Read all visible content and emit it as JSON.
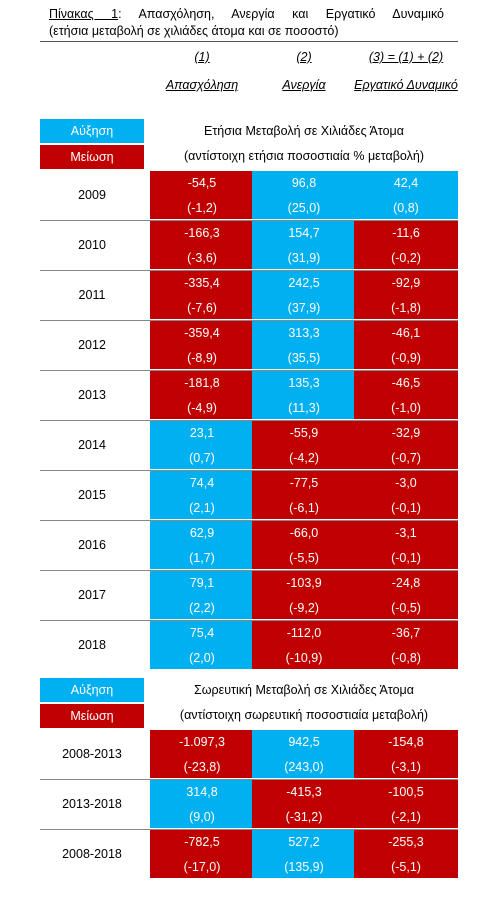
{
  "title": {
    "prefix": "Πίνακας 1",
    "line1_rest": ": Απασχόληση, Ανεργία και Εργατικό Δυναμικό",
    "line2": "(ετήσια μεταβολή σε χιλιάδες άτομα και σε ποσοστό)"
  },
  "columns": [
    {
      "num": "(1)",
      "name": "Απασχόληση"
    },
    {
      "num": "(2)",
      "name": "Ανεργία"
    },
    {
      "num": "(3) = (1) + (2)",
      "name": "Εργατικό Δυναμικό"
    }
  ],
  "legend": {
    "increase": "Αύξηση",
    "decrease": "Μείωση"
  },
  "colors": {
    "increase": "#00b0f0",
    "decrease": "#c00000"
  },
  "section1": {
    "line1": "Ετήσια Μεταβολή σε Χιλιάδες Άτομα",
    "line2": "(αντίστοιχη ετήσια ποσοστιαία % μεταβολή)"
  },
  "section2": {
    "line1": "Σωρευτική Μεταβολή σε Χιλιάδες Άτομα",
    "line2": "(αντίστοιχη σωρευτική ποσοστιαία μεταβολή)"
  },
  "annual_rows": [
    {
      "label": "2009",
      "cells": [
        [
          "-54,5",
          "(-1,2)",
          "decrease"
        ],
        [
          "96,8",
          "(25,0)",
          "increase"
        ],
        [
          "42,4",
          "(0,8)",
          "increase"
        ]
      ]
    },
    {
      "label": "2010",
      "cells": [
        [
          "-166,3",
          "(-3,6)",
          "decrease"
        ],
        [
          "154,7",
          "(31,9)",
          "increase"
        ],
        [
          "-11,6",
          "(-0,2)",
          "decrease"
        ]
      ]
    },
    {
      "label": "2011",
      "cells": [
        [
          "-335,4",
          "(-7,6)",
          "decrease"
        ],
        [
          "242,5",
          "(37,9)",
          "increase"
        ],
        [
          "-92,9",
          "(-1,8)",
          "decrease"
        ]
      ]
    },
    {
      "label": "2012",
      "cells": [
        [
          "-359,4",
          "(-8,9)",
          "decrease"
        ],
        [
          "313,3",
          "(35,5)",
          "increase"
        ],
        [
          "-46,1",
          "(-0,9)",
          "decrease"
        ]
      ]
    },
    {
      "label": "2013",
      "cells": [
        [
          "-181,8",
          "(-4,9)",
          "decrease"
        ],
        [
          "135,3",
          "(11,3)",
          "increase"
        ],
        [
          "-46,5",
          "(-1,0)",
          "decrease"
        ]
      ]
    },
    {
      "label": "2014",
      "cells": [
        [
          "23,1",
          "(0,7)",
          "increase"
        ],
        [
          "-55,9",
          "(-4,2)",
          "decrease"
        ],
        [
          "-32,9",
          "(-0,7)",
          "decrease"
        ]
      ]
    },
    {
      "label": "2015",
      "cells": [
        [
          "74,4",
          "(2,1)",
          "increase"
        ],
        [
          "-77,5",
          "(-6,1)",
          "decrease"
        ],
        [
          "-3,0",
          "(-0,1)",
          "decrease"
        ]
      ]
    },
    {
      "label": "2016",
      "cells": [
        [
          "62,9",
          "(1,7)",
          "increase"
        ],
        [
          "-66,0",
          "(-5,5)",
          "decrease"
        ],
        [
          "-3,1",
          "(-0,1)",
          "decrease"
        ]
      ]
    },
    {
      "label": "2017",
      "cells": [
        [
          "79,1",
          "(2,2)",
          "increase"
        ],
        [
          "-103,9",
          "(-9,2)",
          "decrease"
        ],
        [
          "-24,8",
          "(-0,5)",
          "decrease"
        ]
      ]
    },
    {
      "label": "2018",
      "cells": [
        [
          "75,4",
          "(2,0)",
          "increase"
        ],
        [
          "-112,0",
          "(-10,9)",
          "decrease"
        ],
        [
          "-36,7",
          "(-0,8)",
          "decrease"
        ]
      ]
    }
  ],
  "cumulative_rows": [
    {
      "label": "2008-2013",
      "cells": [
        [
          "-1.097,3",
          "(-23,8)",
          "decrease"
        ],
        [
          "942,5",
          "(243,0)",
          "increase"
        ],
        [
          "-154,8",
          "(-3,1)",
          "decrease"
        ]
      ]
    },
    {
      "label": "2013-2018",
      "cells": [
        [
          "314,8",
          "(9,0)",
          "increase"
        ],
        [
          "-415,3",
          "(-31,2)",
          "decrease"
        ],
        [
          "-100,5",
          "(-2,1)",
          "decrease"
        ]
      ]
    },
    {
      "label": "2008-2018",
      "cells": [
        [
          "-782,5",
          "(-17,0)",
          "decrease"
        ],
        [
          "527,2",
          "(135,9)",
          "increase"
        ],
        [
          "-255,3",
          "(-5,1)",
          "decrease"
        ]
      ]
    }
  ]
}
